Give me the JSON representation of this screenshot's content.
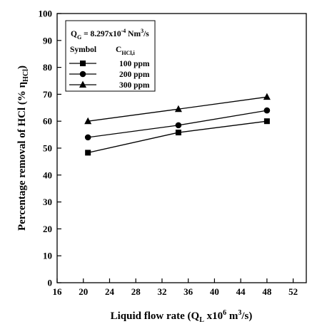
{
  "chart_data": {
    "type": "line",
    "title": "",
    "xlabel": {
      "main": "Liquid flow rate (Q",
      "sub": "L",
      "mid": " x10",
      "sup1": "6",
      "mid2": " m",
      "sup2": "3",
      "end": "/s)"
    },
    "ylabel": {
      "main": "Percentage removal of HCl  (% η",
      "sub": "HCl",
      "end": ")"
    },
    "xlim": [
      16,
      54
    ],
    "ylim": [
      0,
      100
    ],
    "xticks": [
      16,
      20,
      24,
      28,
      32,
      36,
      40,
      44,
      48,
      52
    ],
    "yticks": [
      0,
      10,
      20,
      30,
      40,
      50,
      60,
      70,
      80,
      90,
      100
    ],
    "x": [
      20.7,
      34.5,
      48
    ],
    "series": [
      {
        "name": "100 ppm",
        "marker": "square",
        "values": [
          48.3,
          55.8,
          60.0
        ]
      },
      {
        "name": "200 ppm",
        "marker": "circle",
        "values": [
          54.0,
          58.5,
          64.0
        ]
      },
      {
        "name": "300 ppm",
        "marker": "triangle",
        "values": [
          60.0,
          64.5,
          69.0
        ]
      }
    ],
    "legend": {
      "placement": "top-left",
      "condition": {
        "main": "Q",
        "sub": "G",
        "mid": " = 8.297x10",
        "sup1": "-4",
        "mid2": " Nm",
        "sup2": "3",
        "end": "/s"
      },
      "header_symbol": "Symbol",
      "header_conc": {
        "main": "C",
        "sub": "HCl,i"
      }
    },
    "grid": false,
    "colors": {
      "line": "#000000",
      "marker": "#000000",
      "background": "#ffffff"
    }
  }
}
